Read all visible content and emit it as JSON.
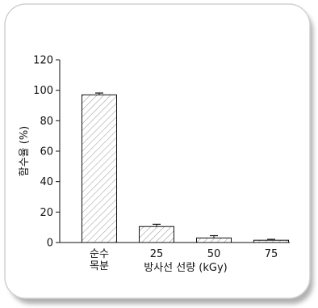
{
  "chart_data": {
    "type": "bar",
    "title": "",
    "xlabel": "방사선 선량 (kGy)",
    "ylabel": "함수율 (%)",
    "ylim": [
      0,
      120
    ],
    "yticks": [
      "0",
      "20",
      "40",
      "60",
      "80",
      "100",
      "120"
    ],
    "categories": [
      {
        "line1": "순수",
        "line2": "목분"
      },
      {
        "line1": "25",
        "line2": ""
      },
      {
        "line1": "50",
        "line2": ""
      },
      {
        "line1": "75",
        "line2": ""
      }
    ],
    "values": [
      97,
      10.5,
      3,
      1.5
    ],
    "errors": [
      1.2,
      1.5,
      1.5,
      0.6
    ],
    "bar_fill": "hatched",
    "grid": false,
    "legend": "none"
  },
  "colors": {
    "frame_border": "#c9c9c9",
    "shadow": "#bdbdbd",
    "ink": "#111111",
    "bar_fill": "#ffffff"
  }
}
